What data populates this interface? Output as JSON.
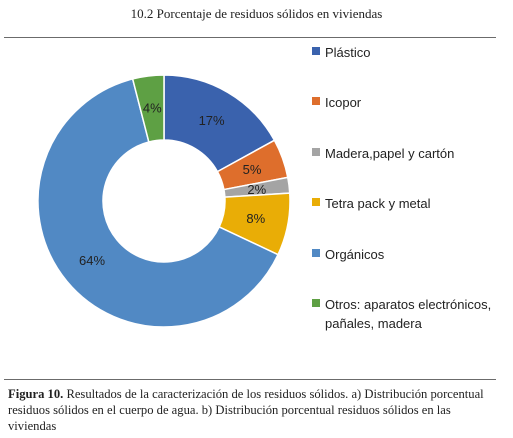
{
  "chart_data": {
    "type": "pie",
    "title": "10.2 Porcentaje de residuos sólidos en viviendas",
    "labels": [
      "Plástico",
      "Icopor",
      "Madera,papel y cartón",
      "Tetra pack y metal",
      "Orgánicos",
      "Otros: aparatos electrónicos, pañales, madera"
    ],
    "values": [
      17,
      5,
      2,
      8,
      64,
      4
    ],
    "value_labels": [
      "17%",
      "5%",
      "2%",
      "8%",
      "64%",
      "4%"
    ],
    "colors": [
      "#3a62ad",
      "#de6e2c",
      "#a4a4a4",
      "#e9ad06",
      "#5189c4",
      "#5ea044"
    ],
    "legend_position": "right",
    "donut": true
  },
  "caption": {
    "label": "Figura 10.",
    "text": "Resultados de la caracterización de los residuos sólidos. a) Distribución porcentual residuos sólidos en el cuerpo de agua. b) Distribución porcentual residuos sólidos en las viviendas"
  }
}
